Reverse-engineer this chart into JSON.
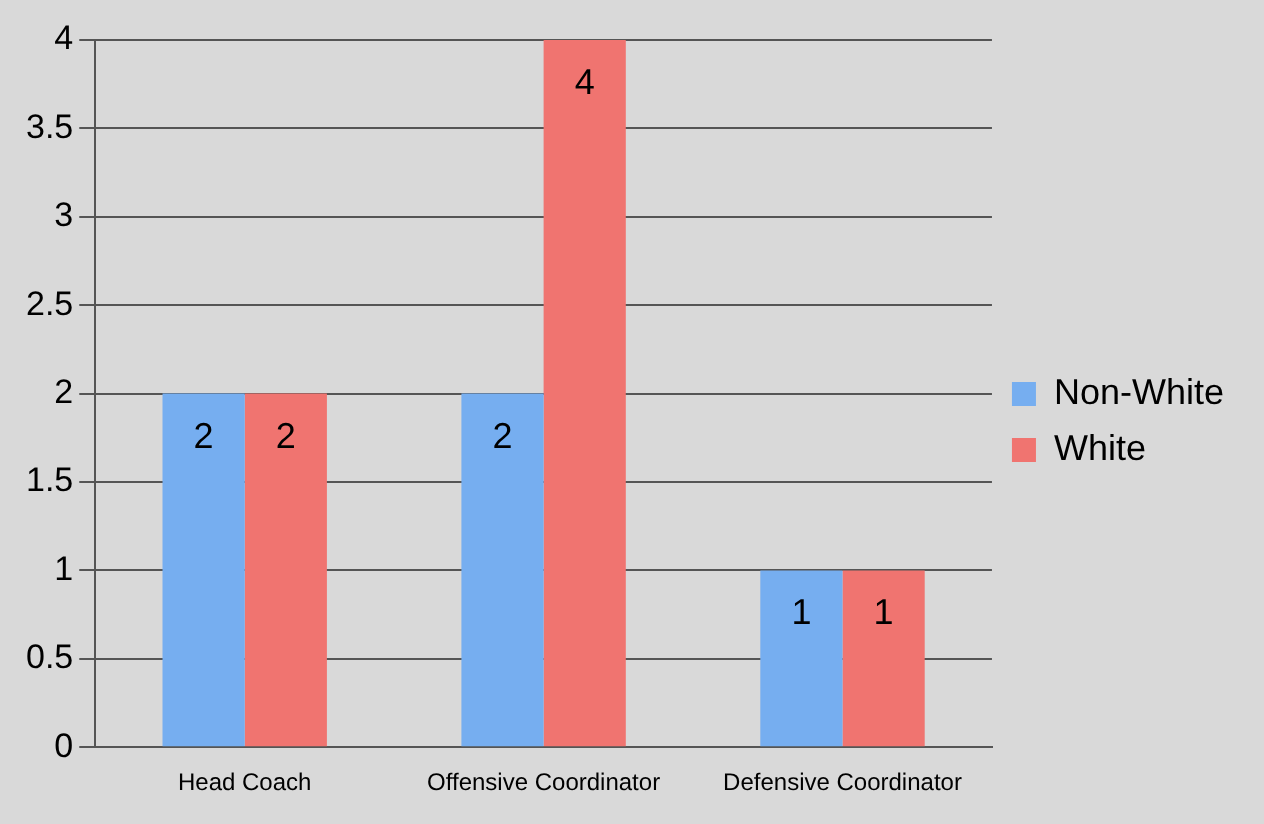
{
  "chart_data": {
    "type": "bar",
    "categories": [
      "Head Coach",
      "Offensive Coordinator",
      "Defensive Coordinator"
    ],
    "series": [
      {
        "name": "Non-White",
        "color": "#76aef0",
        "values": [
          2,
          2,
          1
        ]
      },
      {
        "name": "White",
        "color": "#f07470",
        "values": [
          2,
          4,
          1
        ]
      }
    ],
    "ylim": [
      0,
      4
    ],
    "yticks": [
      0,
      0.5,
      1,
      1.5,
      2,
      2.5,
      3,
      3.5,
      4
    ],
    "grid": "y",
    "legend": "right",
    "data_labels": true
  }
}
